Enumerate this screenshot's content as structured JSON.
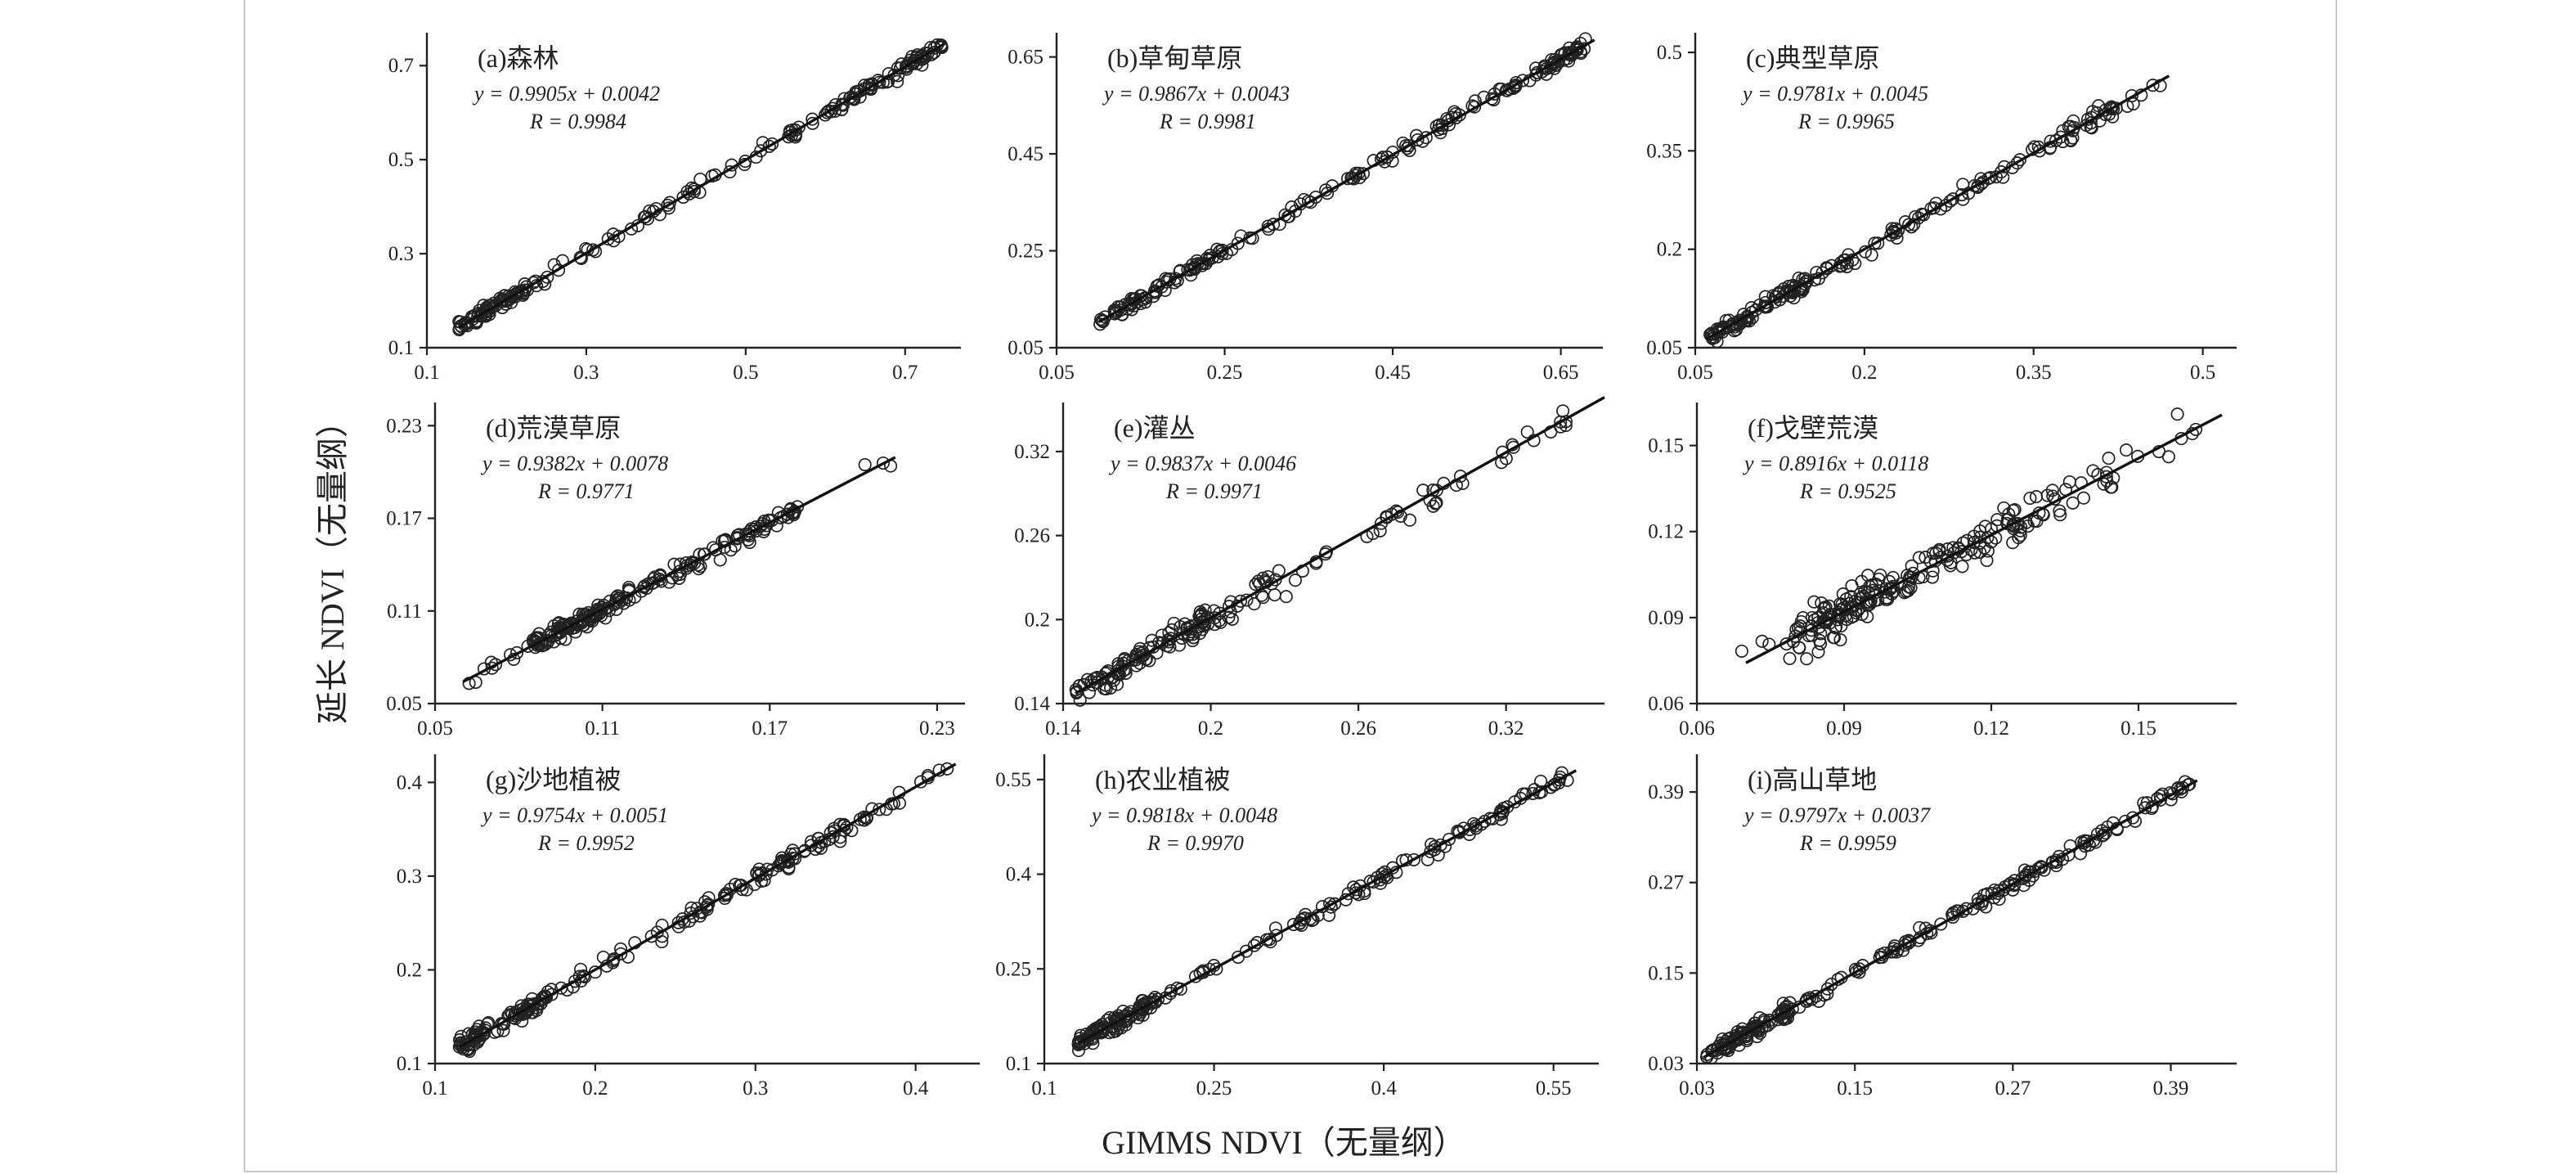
{
  "figure": {
    "xlabel": "GIMMS NDVI（无量纲）",
    "ylabel": "延长 NDVI（无量纲）"
  },
  "chart_data": [
    {
      "type": "scatter",
      "title": "(a)森林",
      "equation": "y = 0.9905x + 0.0042",
      "r_text": "R = 0.9984",
      "slope": 0.9905,
      "intercept": 0.0042,
      "xlim": [
        0.1,
        0.77
      ],
      "ylim": [
        0.1,
        0.77
      ],
      "xticks": [
        0.1,
        0.3,
        0.5,
        0.7
      ],
      "yticks": [
        0.1,
        0.3,
        0.5,
        0.7
      ],
      "xtick_labels": [
        "0.1",
        "0.3",
        "0.5",
        "0.7"
      ],
      "ytick_labels": [
        "0.1",
        "0.3",
        "0.5",
        "0.7"
      ],
      "fit_range": [
        0.14,
        0.75
      ],
      "noise": 0.012,
      "point_groups": [
        [
          0.14,
          0.22,
          70
        ],
        [
          0.22,
          0.45,
          45
        ],
        [
          0.45,
          0.62,
          30
        ],
        [
          0.62,
          0.75,
          70
        ]
      ]
    },
    {
      "type": "scatter",
      "title": "(b)草甸草原",
      "equation": "y = 0.9867x + 0.0043",
      "r_text": "R = 0.9981",
      "slope": 0.9867,
      "intercept": 0.0043,
      "xlim": [
        0.05,
        0.7
      ],
      "ylim": [
        0.05,
        0.7
      ],
      "xticks": [
        0.05,
        0.25,
        0.45,
        0.65
      ],
      "yticks": [
        0.05,
        0.25,
        0.45,
        0.65
      ],
      "xtick_labels": [
        "0.05",
        "0.25",
        "0.45",
        "0.65"
      ],
      "ytick_labels": [
        "0.05",
        "0.25",
        "0.45",
        "0.65"
      ],
      "fit_range": [
        0.1,
        0.69
      ],
      "noise": 0.012,
      "point_groups": [
        [
          0.1,
          0.25,
          80
        ],
        [
          0.25,
          0.45,
          40
        ],
        [
          0.45,
          0.6,
          40
        ],
        [
          0.6,
          0.68,
          45
        ]
      ]
    },
    {
      "type": "scatter",
      "title": "(c)典型草原",
      "equation": "y = 0.9781x + 0.0045",
      "r_text": "R = 0.9965",
      "slope": 0.9781,
      "intercept": 0.0045,
      "xlim": [
        0.05,
        0.53
      ],
      "ylim": [
        0.05,
        0.53
      ],
      "xticks": [
        0.05,
        0.2,
        0.35,
        0.5
      ],
      "yticks": [
        0.05,
        0.2,
        0.35,
        0.5
      ],
      "xtick_labels": [
        "0.05",
        "0.2",
        "0.35",
        "0.5"
      ],
      "ytick_labels": [
        "0.05",
        "0.2",
        "0.35",
        "0.5"
      ],
      "fit_range": [
        0.06,
        0.47
      ],
      "noise": 0.01,
      "point_groups": [
        [
          0.06,
          0.15,
          90
        ],
        [
          0.15,
          0.3,
          50
        ],
        [
          0.3,
          0.42,
          50
        ],
        [
          0.42,
          0.47,
          8
        ]
      ]
    },
    {
      "type": "scatter",
      "title": "(d)荒漠草原",
      "equation": "y = 0.9382x + 0.0078",
      "r_text": "R = 0.9771",
      "slope": 0.9382,
      "intercept": 0.0078,
      "xlim": [
        0.05,
        0.24
      ],
      "ylim": [
        0.05,
        0.245
      ],
      "xticks": [
        0.05,
        0.11,
        0.17,
        0.23
      ],
      "yticks": [
        0.05,
        0.11,
        0.17,
        0.23
      ],
      "xtick_labels": [
        "0.05",
        "0.11",
        "0.17",
        "0.23"
      ],
      "ytick_labels": [
        "0.05",
        "0.11",
        "0.17",
        "0.23"
      ],
      "fit_range": [
        0.06,
        0.215
      ],
      "noise": 0.005,
      "point_groups": [
        [
          0.06,
          0.085,
          10
        ],
        [
          0.085,
          0.11,
          90
        ],
        [
          0.11,
          0.14,
          45
        ],
        [
          0.14,
          0.18,
          60
        ],
        [
          0.2,
          0.215,
          3
        ]
      ]
    },
    {
      "type": "scatter",
      "title": "(e)灌丛",
      "equation": "y = 0.9837x + 0.0046",
      "r_text": "R = 0.9971",
      "slope": 0.9837,
      "intercept": 0.0046,
      "xlim": [
        0.14,
        0.36
      ],
      "ylim": [
        0.14,
        0.355
      ],
      "xticks": [
        0.14,
        0.2,
        0.26,
        0.32
      ],
      "yticks": [
        0.14,
        0.2,
        0.26,
        0.32
      ],
      "xtick_labels": [
        "0.14",
        "0.2",
        "0.26",
        "0.32"
      ],
      "ytick_labels": [
        "0.14",
        "0.2",
        "0.26",
        "0.32"
      ],
      "fit_range": [
        0.145,
        0.36
      ],
      "noise": 0.008,
      "point_groups": [
        [
          0.145,
          0.2,
          110
        ],
        [
          0.2,
          0.25,
          35
        ],
        [
          0.26,
          0.3,
          20
        ],
        [
          0.3,
          0.345,
          15
        ]
      ]
    },
    {
      "type": "scatter",
      "title": "(f)戈壁荒漠",
      "equation": "y = 0.8916x + 0.0118",
      "r_text": "R = 0.9525",
      "slope": 0.8916,
      "intercept": 0.0118,
      "xlim": [
        0.06,
        0.17
      ],
      "ylim": [
        0.06,
        0.165
      ],
      "xticks": [
        0.06,
        0.09,
        0.12,
        0.15
      ],
      "yticks": [
        0.06,
        0.09,
        0.12,
        0.15
      ],
      "xtick_labels": [
        "0.06",
        "0.09",
        "0.12",
        "0.15"
      ],
      "ytick_labels": [
        "0.06",
        "0.09",
        "0.12",
        "0.15"
      ],
      "fit_range": [
        0.07,
        0.167
      ],
      "noise": 0.006,
      "point_groups": [
        [
          0.068,
          0.08,
          6
        ],
        [
          0.08,
          0.1,
          110
        ],
        [
          0.1,
          0.125,
          70
        ],
        [
          0.125,
          0.145,
          35
        ],
        [
          0.145,
          0.167,
          8
        ]
      ]
    },
    {
      "type": "scatter",
      "title": "(g)沙地植被",
      "equation": "y = 0.9754x + 0.0051",
      "r_text": "R = 0.9952",
      "slope": 0.9754,
      "intercept": 0.0051,
      "xlim": [
        0.1,
        0.44
      ],
      "ylim": [
        0.1,
        0.43
      ],
      "xticks": [
        0.1,
        0.2,
        0.3,
        0.4
      ],
      "yticks": [
        0.1,
        0.2,
        0.3,
        0.4
      ],
      "xtick_labels": [
        "0.1",
        "0.2",
        "0.3",
        "0.4"
      ],
      "ytick_labels": [
        "0.1",
        "0.2",
        "0.3",
        "0.4"
      ],
      "fit_range": [
        0.115,
        0.425
      ],
      "noise": 0.008,
      "point_groups": [
        [
          0.115,
          0.17,
          90
        ],
        [
          0.17,
          0.28,
          45
        ],
        [
          0.28,
          0.37,
          70
        ],
        [
          0.37,
          0.42,
          12
        ]
      ]
    },
    {
      "type": "scatter",
      "title": "(h)农业植被",
      "equation": "y = 0.9818x + 0.0048",
      "r_text": "R = 0.9970",
      "slope": 0.9818,
      "intercept": 0.0048,
      "xlim": [
        0.1,
        0.59
      ],
      "ylim": [
        0.1,
        0.59
      ],
      "xticks": [
        0.1,
        0.25,
        0.4,
        0.55
      ],
      "yticks": [
        0.1,
        0.25,
        0.4,
        0.55
      ],
      "xtick_labels": [
        "0.1",
        "0.25",
        "0.4",
        "0.55"
      ],
      "ytick_labels": [
        "0.1",
        "0.25",
        "0.4",
        "0.55"
      ],
      "fit_range": [
        0.13,
        0.57
      ],
      "noise": 0.01,
      "point_groups": [
        [
          0.13,
          0.2,
          100
        ],
        [
          0.2,
          0.35,
          35
        ],
        [
          0.35,
          0.5,
          50
        ],
        [
          0.5,
          0.565,
          25
        ]
      ]
    },
    {
      "type": "scatter",
      "title": "(i)高山草地",
      "equation": "y = 0.9797x + 0.0037",
      "r_text": "R = 0.9959",
      "slope": 0.9797,
      "intercept": 0.0037,
      "xlim": [
        0.03,
        0.44
      ],
      "ylim": [
        0.03,
        0.44
      ],
      "xticks": [
        0.03,
        0.15,
        0.27,
        0.39
      ],
      "yticks": [
        0.03,
        0.15,
        0.27,
        0.39
      ],
      "xtick_labels": [
        "0.03",
        "0.15",
        "0.27",
        "0.39"
      ],
      "ytick_labels": [
        "0.03",
        "0.15",
        "0.27",
        "0.39"
      ],
      "fit_range": [
        0.035,
        0.41
      ],
      "noise": 0.008,
      "point_groups": [
        [
          0.035,
          0.1,
          100
        ],
        [
          0.1,
          0.2,
          40
        ],
        [
          0.2,
          0.3,
          50
        ],
        [
          0.3,
          0.405,
          50
        ]
      ]
    }
  ]
}
